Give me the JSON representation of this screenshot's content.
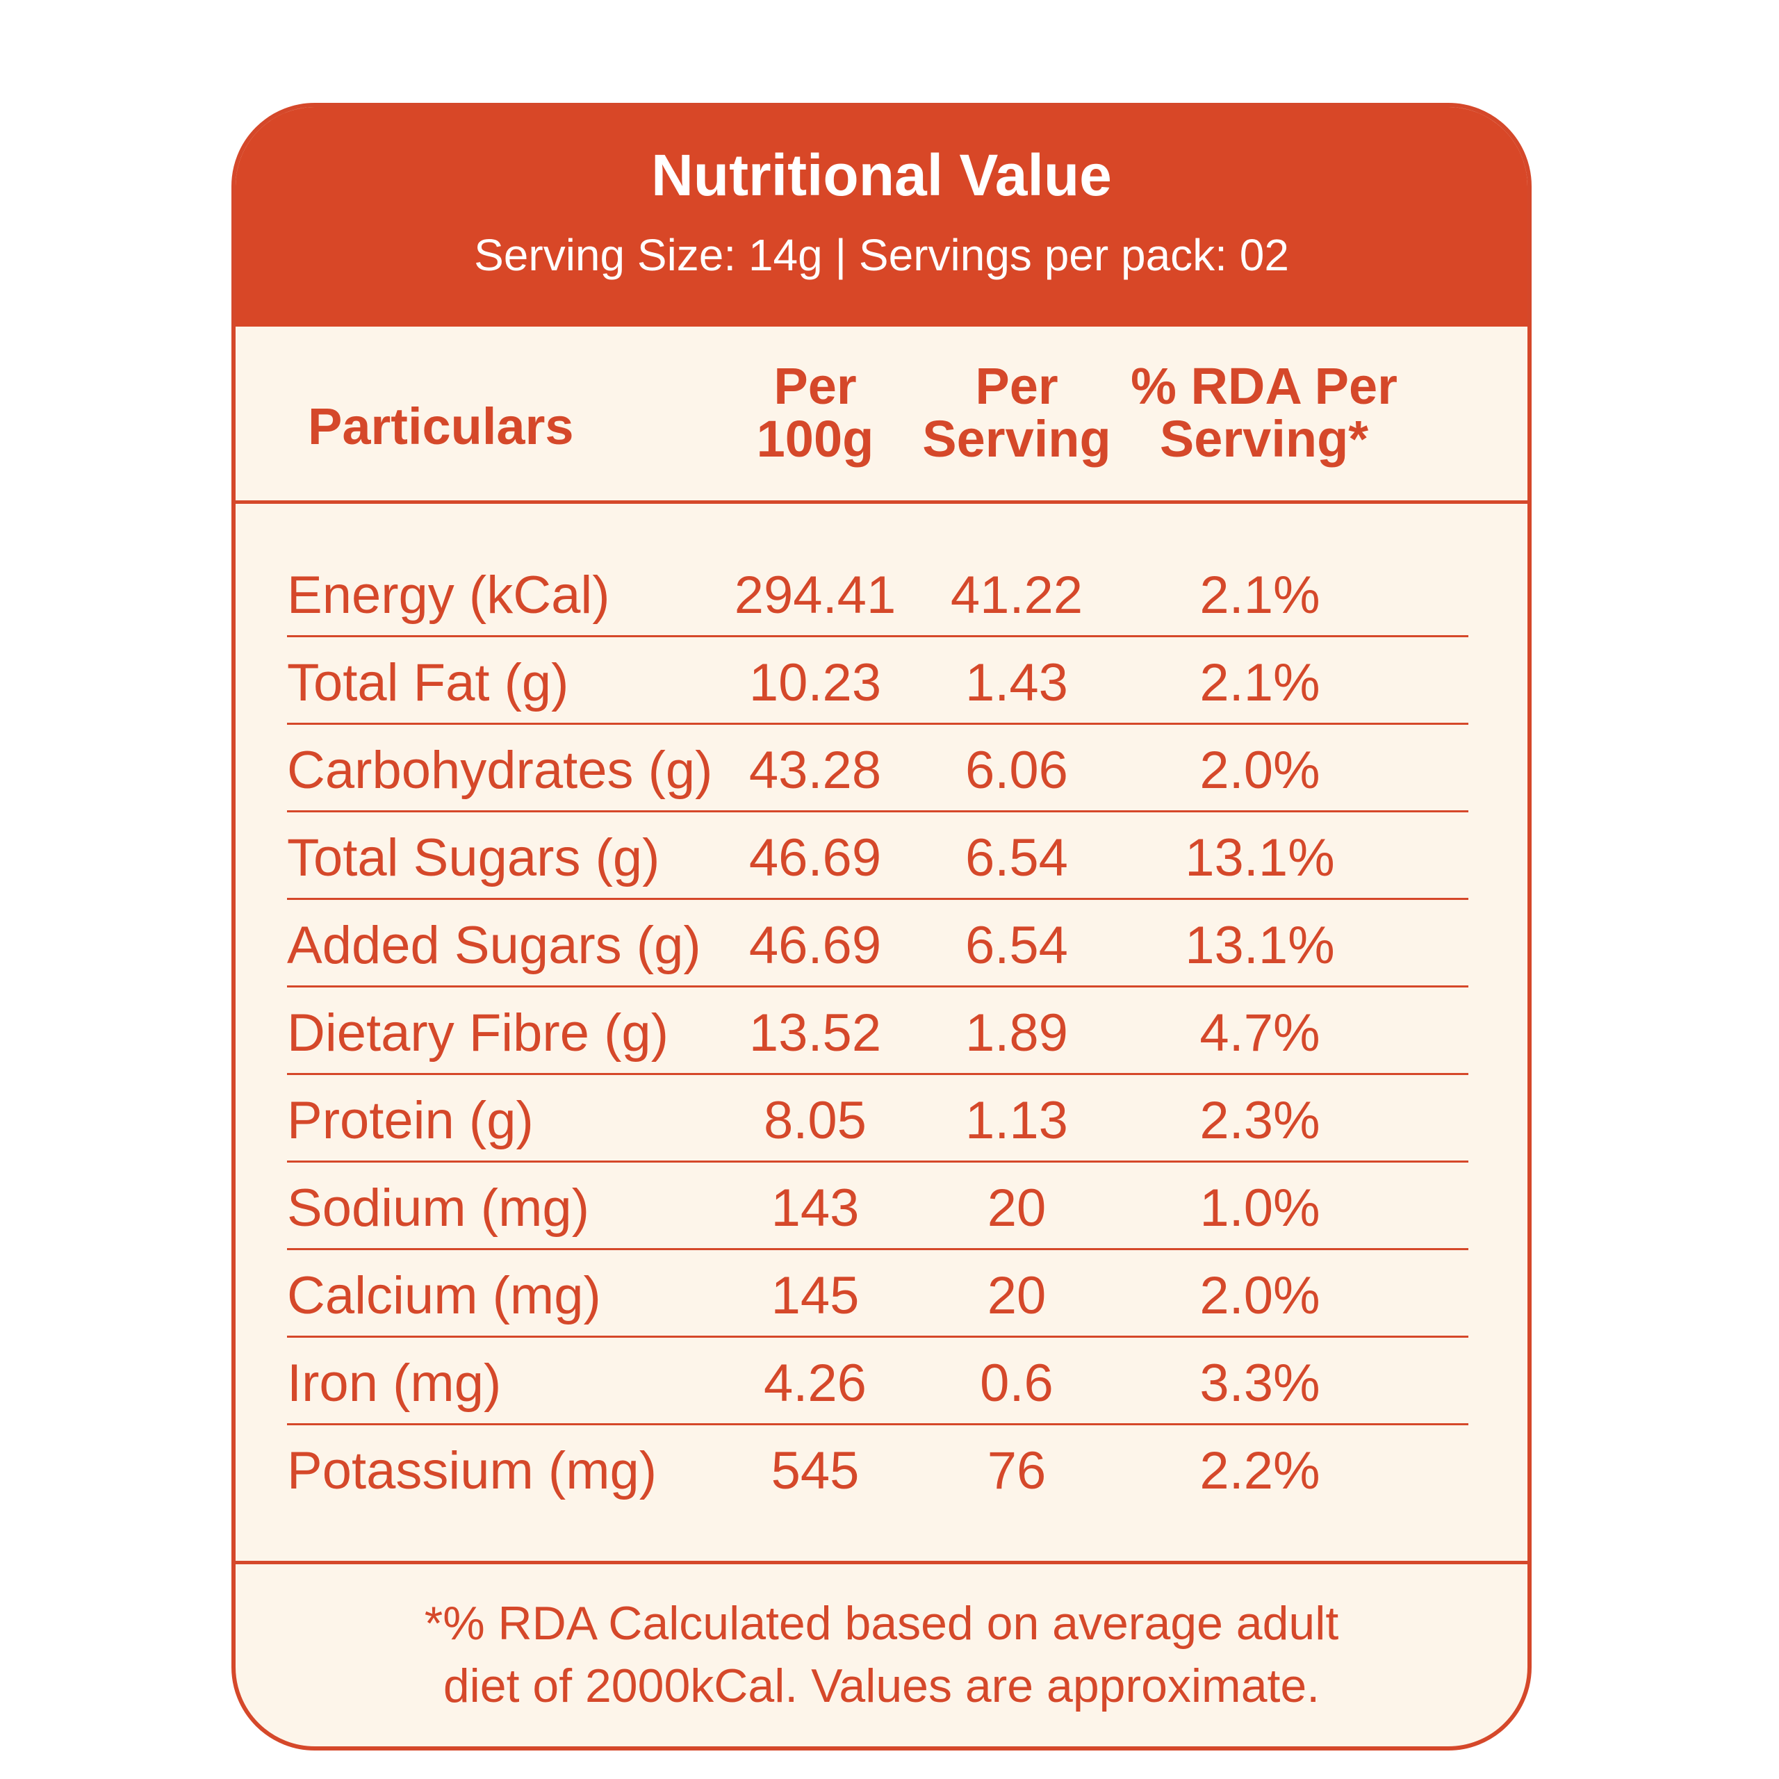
{
  "header": {
    "title": "Nutritional Value",
    "subtitle": "Serving Size: 14g | Servings per pack: 02"
  },
  "columns": {
    "particulars": "Particulars",
    "per100_l1": "Per",
    "per100_l2": "100g",
    "serv_l1": "Per",
    "serv_l2": "Serving",
    "rda_l1": "% RDA Per",
    "rda_l2": "Serving*"
  },
  "rows": [
    {
      "name": "Energy (kCal)",
      "per100": "294.41",
      "serving": "41.22",
      "rda": "2.1%"
    },
    {
      "name": "Total Fat (g)",
      "per100": "10.23",
      "serving": "1.43",
      "rda": "2.1%"
    },
    {
      "name": "Carbohydrates (g)",
      "per100": "43.28",
      "serving": "6.06",
      "rda": "2.0%"
    },
    {
      "name": "Total Sugars (g)",
      "per100": "46.69",
      "serving": "6.54",
      "rda": "13.1%"
    },
    {
      "name": "Added Sugars (g)",
      "per100": "46.69",
      "serving": "6.54",
      "rda": "13.1%"
    },
    {
      "name": "Dietary Fibre (g)",
      "per100": "13.52",
      "serving": "1.89",
      "rda": "4.7%"
    },
    {
      "name": "Protein (g)",
      "per100": "8.05",
      "serving": "1.13",
      "rda": "2.3%"
    },
    {
      "name": "Sodium (mg)",
      "per100": "143",
      "serving": "20",
      "rda": "1.0%"
    },
    {
      "name": "Calcium (mg)",
      "per100": "145",
      "serving": "20",
      "rda": "2.0%"
    },
    {
      "name": "Iron (mg)",
      "per100": "4.26",
      "serving": "0.6",
      "rda": "3.3%"
    },
    {
      "name": "Potassium (mg)",
      "per100": "545",
      "serving": "76",
      "rda": "2.2%"
    }
  ],
  "footer": {
    "line1": "*% RDA Calculated based on average adult",
    "line2": "diet of 2000kCal. Values are approximate."
  }
}
